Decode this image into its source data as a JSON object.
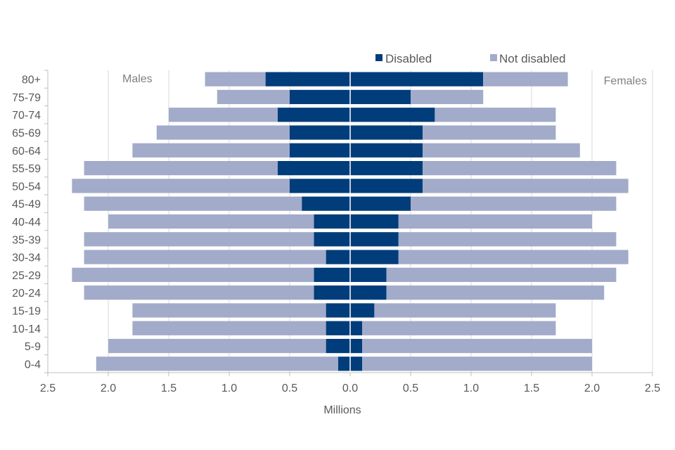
{
  "chart_data": {
    "type": "bar",
    "orientation": "horizontal",
    "subtype": "population-pyramid-stacked",
    "categories": [
      "80+",
      "75-79",
      "70-74",
      "65-69",
      "60-64",
      "55-59",
      "50-54",
      "45-49",
      "40-44",
      "35-39",
      "30-34",
      "25-29",
      "20-24",
      "15-19",
      "10-14",
      "5-9",
      "0-4"
    ],
    "series": [
      {
        "name": "Disabled",
        "color": "#003d7a",
        "males": [
          0.7,
          0.5,
          0.6,
          0.5,
          0.5,
          0.6,
          0.5,
          0.4,
          0.3,
          0.3,
          0.2,
          0.3,
          0.3,
          0.2,
          0.2,
          0.2,
          0.1
        ],
        "females": [
          1.1,
          0.5,
          0.7,
          0.6,
          0.6,
          0.6,
          0.6,
          0.5,
          0.4,
          0.4,
          0.4,
          0.3,
          0.3,
          0.2,
          0.1,
          0.1,
          0.1
        ]
      },
      {
        "name": "Not disabled",
        "color": "#a2abc9",
        "males": [
          0.5,
          0.6,
          0.9,
          1.1,
          1.3,
          1.6,
          1.8,
          1.8,
          1.7,
          1.9,
          2.0,
          2.0,
          1.9,
          1.6,
          1.6,
          1.8,
          2.0
        ],
        "females": [
          0.7,
          0.6,
          1.0,
          1.1,
          1.3,
          1.6,
          1.7,
          1.7,
          1.6,
          1.8,
          1.9,
          1.9,
          1.8,
          1.5,
          1.6,
          1.9,
          1.9
        ]
      }
    ],
    "xlabel": "Millions",
    "xlim": [
      -2.5,
      2.5
    ],
    "x_tick_values": [
      -2.5,
      -2.0,
      -1.5,
      -1.0,
      -0.5,
      0.0,
      0.5,
      1.0,
      1.5,
      2.0,
      2.5
    ],
    "x_tick_labels": [
      "2.5",
      "2.0",
      "1.5",
      "1.0",
      "0.5",
      "0.0",
      "0.5",
      "1.0",
      "1.5",
      "2.0",
      "2.5"
    ],
    "side_labels": {
      "left": "Males",
      "right": "Females"
    },
    "legend_position": "top-right",
    "grid": true
  }
}
